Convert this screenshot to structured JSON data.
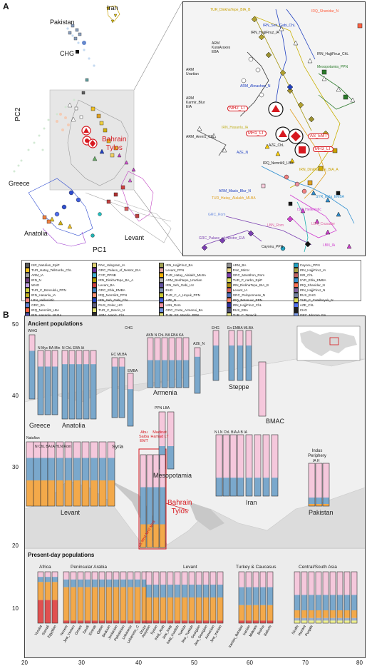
{
  "figure": {
    "panel_a_letter": "A",
    "panel_b_letter": "B",
    "pc1_label": "PC1",
    "pc2_label": "PC2"
  },
  "pca_labels": {
    "iran": "Iran",
    "pakistan": "Pakistan",
    "chg": "CHG",
    "bahrain_line1": "Bahrain",
    "bahrain_line2": "Tylos",
    "greece": "Greece",
    "anatolia": "Anatolia",
    "levant": "Levant"
  },
  "inset_labels": {
    "l1": "TUR_DinkhaTepe_BIA_B",
    "l2": "IRQ_Shanidar_N",
    "l3": "IRN_Seh_Gabi_ChL",
    "l4": "IRN_HajjiFiruz_IA",
    "l5": "ARM KuraAraxes EBA",
    "l6": "ARM Urartian",
    "l7": "IRN_HajjiFiruz_ChL",
    "l8": "Mesopotamia_PPN",
    "l9": "ARM_Aknashen_N",
    "l10": "ARM Karmir_Blur EIA",
    "l11": "ARM_Areni1_ChL",
    "l12": "IRN_Hasanlu_IA",
    "l13": "AZE_ChL",
    "l14": "AZE_N",
    "l15": "IRQ_Nemrik9_LBA",
    "l16": "IRN_DinkhaTepe_BIA_A",
    "l17": "ARM_Masis_Blur_N",
    "l18": "TUR_Hatay_Alalakh_MLBA",
    "l19": "SYR_Ebla_EMBA",
    "l20": "ISR_Hellenistic",
    "l21": "LBN_Rom",
    "l22": "GRC_Rom",
    "l23": "LBN_Crusader",
    "l24": "GRC_Palace_of_Nestor_EIA",
    "l25": "Cayonu_PPN",
    "l26": "LBN_IA",
    "mh2": "MH2_LT",
    "mh1": "MH1_LT",
    "as_emt": "AS_EMT",
    "mh3": "MH3_LT"
  },
  "legend_items": [
    {
      "label": "ISR_Natufian_EpiP",
      "color": "#5b5b5b"
    },
    {
      "label": "PAK_Udegram_IA",
      "color": "#e0d070"
    },
    {
      "label": "IRN_HajjiFiruz_BA",
      "color": "#a0a050"
    },
    {
      "label": "ARM_BA",
      "color": "#909090"
    },
    {
      "label": "Cayonu_PPN",
      "color": "#1fa0c0"
    },
    {
      "label": "TUR_Hatay_TellKurdu_ChL",
      "color": "#f0c020"
    },
    {
      "label": "GRC_Palace_of_Nestor_EIA",
      "color": "#7030a0"
    },
    {
      "label": "Levant_PPN",
      "color": "#e0a0a0"
    },
    {
      "label": "PAK_Mirror",
      "color": "#e8d080"
    },
    {
      "label": "IRN_HajjiFiruz_IA",
      "color": "#a8a040"
    },
    {
      "label": "ARM_IA",
      "color": "#a0a0a0"
    },
    {
      "label": "CYP_PPNB",
      "color": "#40b0d0"
    },
    {
      "label": "TUR_Hatay_Alalakh_MLBA",
      "color": "#f0b000"
    },
    {
      "label": "GRC_Marathon_Rom",
      "color": "#8040b0"
    },
    {
      "label": "ISR_ChL",
      "color": "#c06060"
    },
    {
      "label": "IRN_N",
      "color": "#704080"
    },
    {
      "label": "IRN_DinkhaTepe_BA_A",
      "color": "#b0a000"
    },
    {
      "label": "ARM_Beshtepe_Urartian",
      "color": "#b0b0b0"
    },
    {
      "label": "TUR_P_narbo_EpiP",
      "color": "#e0e060"
    },
    {
      "label": "SYR_Ebla_EMBA",
      "color": "#3090d0"
    },
    {
      "label": "WHG",
      "color": "#c0a0e0"
    },
    {
      "label": "Levant_BA",
      "color": "#d04040"
    },
    {
      "label": "IRN_Seh_Gabi_LN",
      "color": "#6050a0"
    },
    {
      "label": "IRN_DinkhaTepe_BIA_B",
      "color": "#b09010"
    },
    {
      "label": "IRQ_Shanidar_N",
      "color": "#ff7050"
    },
    {
      "label": "TUR_C_Boncuklu_PPN",
      "color": "#d0d040"
    },
    {
      "label": "GRC_Ebla_EMBA",
      "color": "#4080c0"
    },
    {
      "label": "EHG",
      "color": "#8090b0"
    },
    {
      "label": "Levant_IA",
      "color": "#e06060"
    },
    {
      "label": "IRN_HajjiFiruz_N",
      "color": "#8060a0"
    },
    {
      "label": "IRN_Hasanlu_IA",
      "color": "#c0b020"
    },
    {
      "label": "IRQ_Nemrik9_PPN",
      "color": "#ff9070"
    },
    {
      "label": "TUR_C_A_Hoyuk_PPN",
      "color": "#c8c830"
    },
    {
      "label": "GRC_Peloponnese_N",
      "color": "#5070c0"
    },
    {
      "label": "RUS_EHG",
      "color": "#7080a0"
    },
    {
      "label": "LBN_Hellenistic",
      "color": "#f08080"
    },
    {
      "label": "IRN_Seh_Gabi_ChL",
      "color": "#2040c0"
    },
    {
      "label": "AZE_N",
      "color": "#4060e0"
    },
    {
      "label": "IRQ_Betanuur_PPN",
      "color": "#ff8060"
    },
    {
      "label": "TUR_C_Catalhoyuk_N",
      "color": "#d8d850"
    },
    {
      "label": "GRC_BA",
      "color": "#6080d0"
    },
    {
      "label": "RUS_Golec_HG",
      "color": "#606080"
    },
    {
      "label": "LBN_Rom",
      "color": "#f090a0"
    },
    {
      "label": "IRN_HajjiFiruz_ChL",
      "color": "#3030a0"
    },
    {
      "label": "AZE_ChL",
      "color": "#5070f0"
    },
    {
      "label": "IRQ_Nemrik9_LBA",
      "color": "#ff6040"
    },
    {
      "label": "TUR_C_Barcin_N",
      "color": "#e0e070"
    },
    {
      "label": "GRC_Crete_Armenoi_BA",
      "color": "#7090e0"
    },
    {
      "label": "RUS_EBA",
      "color": "#505070"
    },
    {
      "label": "CHG",
      "color": "#202020"
    },
    {
      "label": "IRN_Hasanlu_MLBA",
      "color": "#5050b0"
    },
    {
      "label": "ARM_Areni1_ChL",
      "color": "#303030"
    },
    {
      "label": "TUR_SE_Mardin_PPN",
      "color": "#e8e880"
    },
    {
      "label": "TUR_C_Tepecik",
      "color": "#f0f090"
    },
    {
      "label": "GRC_Minoan_BA",
      "color": "#80a0f0"
    },
    {
      "label": "RUS_Steppe_MLBA",
      "color": "#404060"
    },
    {
      "label": "GRC_Mycenaean_BA",
      "color": "#90b0f0"
    },
    {
      "label": "ARM_N",
      "color": "#404040"
    }
  ],
  "map": {
    "ancient_title": "Ancient populations",
    "present_title": "Present-day populations",
    "regions": {
      "greece": "Greece",
      "anatolia": "Anatolia",
      "armenia": "Armenia",
      "steppe": "Steppe",
      "bmac": "BMAC",
      "syria": "Syria",
      "mesopotamia": "Mesopotamia",
      "levant": "Levant",
      "iran": "Iran",
      "pakistan": "Pakistan",
      "indus": "Indus Periphery",
      "bahrain1": "Bahrain",
      "bahrain2": "Tylos",
      "abu_saiba": "Abu Saiba EMT",
      "madinat": "Madinat Hamad LT"
    },
    "present_groups": {
      "africa": "Africa",
      "peninsular": "Peninsular Arabia",
      "levant": "Levant",
      "turkey": "Turkey & Caucasus",
      "central": "Central/South Asia"
    },
    "ancient_sublabels": {
      "whg": "WHG",
      "greece_cols": "N  Myc  BA Min",
      "anatolia_cols": "N  ChL  EBA  IA",
      "ec_mlba": "EC MLBA",
      "emba": "EMBA",
      "chg": "CHG",
      "arm_cols": "AKN  N  ChL  BA  EBA  KA",
      "aze": "AZE_N",
      "ehg": "EHG",
      "steppe_cols": "En EMBA MLBA",
      "natufian": "Natufian",
      "levant_cols": "N  ChL  BA  IA  HLN  Rom",
      "ppn_lba": "PPN  LBA",
      "iran_cols": "N  LN  ChL  BIA A  B  IA",
      "indus_cols": "IA  H",
      "as_mh": "AS MH1 MH2 MH3"
    },
    "present_labels": [
      "Yoruba",
      "Somali",
      "Egyptian",
      "Yemeni",
      "Jew_Yemen",
      "Omani",
      "Saudi",
      "Emirati",
      "Qatari",
      "Bedouin",
      "Jordanian",
      "Palestinian",
      "Lebanese",
      "Lebanese_C",
      "Druze",
      "Assyrian",
      "Syrian",
      "Iraqi_Arab",
      "Jew_Iraqi",
      "Iraqi_Kurdish",
      "Turkish",
      "Jew_Turkish",
      "Georgian",
      "Jew_Georgian",
      "Armenian",
      "Jew_Iranian",
      "Iranian_Bandari",
      "Iranian",
      "Makrani",
      "Brahui",
      "Balochi",
      "Sindhi",
      "Hazara",
      "Punjabi"
    ],
    "x_ticks": [
      "20",
      "30",
      "40",
      "50",
      "60",
      "70",
      "80"
    ],
    "y_ticks": [
      "50",
      "40",
      "30",
      "20",
      "10"
    ]
  }
}
